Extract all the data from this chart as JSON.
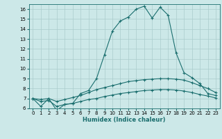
{
  "xlabel": "Humidex (Indice chaleur)",
  "bg_color": "#cce8e8",
  "grid_color": "#aacccc",
  "line_color": "#1a6e6e",
  "xlim": [
    -0.5,
    23.5
  ],
  "ylim": [
    6,
    16.5
  ],
  "xticks": [
    0,
    1,
    2,
    3,
    4,
    5,
    6,
    7,
    8,
    9,
    10,
    11,
    12,
    13,
    14,
    15,
    16,
    17,
    18,
    19,
    20,
    21,
    22,
    23
  ],
  "yticks": [
    6,
    7,
    8,
    9,
    10,
    11,
    12,
    13,
    14,
    15,
    16
  ],
  "line1_x": [
    0,
    1,
    2,
    3,
    4,
    5,
    6,
    7,
    8,
    9,
    10,
    11,
    12,
    13,
    14,
    15,
    16,
    17,
    18,
    19,
    20,
    21,
    22,
    23
  ],
  "line1_y": [
    7.0,
    6.2,
    7.0,
    5.8,
    6.4,
    6.5,
    7.5,
    7.8,
    9.0,
    11.4,
    13.8,
    14.8,
    15.2,
    16.0,
    16.3,
    15.1,
    16.2,
    15.4,
    11.6,
    9.6,
    9.1,
    8.5,
    7.5,
    7.3
  ],
  "line2_x": [
    0,
    1,
    2,
    3,
    4,
    5,
    6,
    7,
    8,
    9,
    10,
    11,
    12,
    13,
    14,
    15,
    16,
    17,
    18,
    19,
    20,
    21,
    22,
    23
  ],
  "line2_y": [
    7.0,
    6.9,
    7.0,
    6.7,
    6.9,
    7.1,
    7.3,
    7.6,
    7.9,
    8.1,
    8.3,
    8.5,
    8.7,
    8.8,
    8.9,
    8.95,
    9.0,
    9.0,
    8.95,
    8.85,
    8.6,
    8.3,
    8.0,
    7.6
  ],
  "line3_x": [
    0,
    1,
    2,
    3,
    4,
    5,
    6,
    7,
    8,
    9,
    10,
    11,
    12,
    13,
    14,
    15,
    16,
    17,
    18,
    19,
    20,
    21,
    22,
    23
  ],
  "line3_y": [
    7.0,
    6.7,
    6.8,
    6.2,
    6.4,
    6.5,
    6.7,
    6.9,
    7.0,
    7.2,
    7.35,
    7.5,
    7.6,
    7.7,
    7.8,
    7.85,
    7.9,
    7.9,
    7.85,
    7.75,
    7.6,
    7.4,
    7.25,
    7.05
  ]
}
